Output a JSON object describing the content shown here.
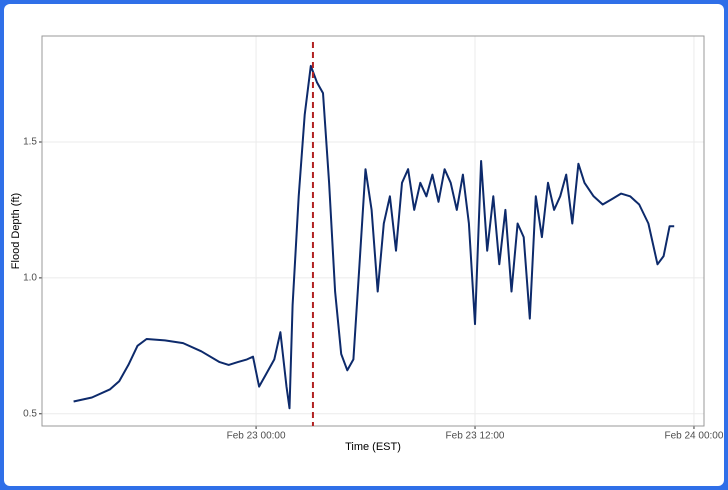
{
  "chart_data": {
    "type": "line",
    "xlabel": "Time (EST)",
    "ylabel": "Flood Depth (ft)",
    "x": [
      "Feb 22 14:00",
      "Feb 22 15:00",
      "Feb 22 16:00",
      "Feb 22 16:30",
      "Feb 22 17:00",
      "Feb 22 17:30",
      "Feb 22 18:00",
      "Feb 22 19:00",
      "Feb 22 20:00",
      "Feb 22 21:00",
      "Feb 22 22:00",
      "Feb 22 22:30",
      "Feb 22 23:00",
      "Feb 22 23:30",
      "Feb 22 23:50",
      "Feb 23 00:10",
      "Feb 23 00:30",
      "Feb 23 01:00",
      "Feb 23 01:20",
      "Feb 23 01:40",
      "Feb 23 01:50",
      "Feb 23 02:00",
      "Feb 23 02:20",
      "Feb 23 02:40",
      "Feb 23 03:00",
      "Feb 23 03:20",
      "Feb 23 03:40",
      "Feb 23 04:00",
      "Feb 23 04:20",
      "Feb 23 04:40",
      "Feb 23 05:00",
      "Feb 23 05:20",
      "Feb 23 05:40",
      "Feb 23 06:00",
      "Feb 23 06:20",
      "Feb 23 06:40",
      "Feb 23 07:00",
      "Feb 23 07:20",
      "Feb 23 07:40",
      "Feb 23 08:00",
      "Feb 23 08:20",
      "Feb 23 08:40",
      "Feb 23 09:00",
      "Feb 23 09:20",
      "Feb 23 09:40",
      "Feb 23 10:00",
      "Feb 23 10:20",
      "Feb 23 10:40",
      "Feb 23 11:00",
      "Feb 23 11:20",
      "Feb 23 11:40",
      "Feb 23 12:00",
      "Feb 23 12:20",
      "Feb 23 12:40",
      "Feb 23 13:00",
      "Feb 23 13:20",
      "Feb 23 13:40",
      "Feb 23 14:00",
      "Feb 23 14:20",
      "Feb 23 14:40",
      "Feb 23 15:00",
      "Feb 23 15:20",
      "Feb 23 15:40",
      "Feb 23 16:00",
      "Feb 23 16:20",
      "Feb 23 16:40",
      "Feb 23 17:00",
      "Feb 23 17:20",
      "Feb 23 17:40",
      "Feb 23 18:00",
      "Feb 23 18:30",
      "Feb 23 19:00",
      "Feb 23 19:30",
      "Feb 23 20:00",
      "Feb 23 20:30",
      "Feb 23 21:00",
      "Feb 23 21:30",
      "Feb 23 22:00",
      "Feb 23 22:20",
      "Feb 23 22:40",
      "Feb 23 22:55"
    ],
    "series": [
      {
        "color": "#0d2a6b",
        "values": [
          0.545,
          0.56,
          0.59,
          0.62,
          0.68,
          0.75,
          0.775,
          0.77,
          0.76,
          0.73,
          0.69,
          0.68,
          0.69,
          0.7,
          0.71,
          0.6,
          0.64,
          0.7,
          0.8,
          0.6,
          0.52,
          0.9,
          1.3,
          1.6,
          1.78,
          1.72,
          1.68,
          1.35,
          0.95,
          0.72,
          0.66,
          0.7,
          1.05,
          1.4,
          1.25,
          0.95,
          1.2,
          1.3,
          1.1,
          1.35,
          1.4,
          1.25,
          1.35,
          1.3,
          1.38,
          1.28,
          1.4,
          1.35,
          1.25,
          1.38,
          1.2,
          0.83,
          1.43,
          1.1,
          1.3,
          1.05,
          1.25,
          0.95,
          1.2,
          1.15,
          0.85,
          1.3,
          1.15,
          1.35,
          1.25,
          1.3,
          1.38,
          1.2,
          1.42,
          1.35,
          1.3,
          1.27,
          1.29,
          1.31,
          1.3,
          1.27,
          1.2,
          1.05,
          1.08,
          1.19,
          1.19
        ]
      }
    ],
    "vline": {
      "x": "Feb 23 03:07",
      "color": "#b22222"
    },
    "xlim": [
      "Feb 22 12:16",
      "Feb 24 00:33"
    ],
    "xticks": [
      "Feb 23 00:00",
      "Feb 23 12:00",
      "Feb 24 00:00"
    ],
    "ylim": [
      0.455,
      1.89
    ],
    "yticks": [
      0.5,
      {
        "value": 1,
        "label": "1.0"
      },
      1.5
    ],
    "grid": true
  }
}
